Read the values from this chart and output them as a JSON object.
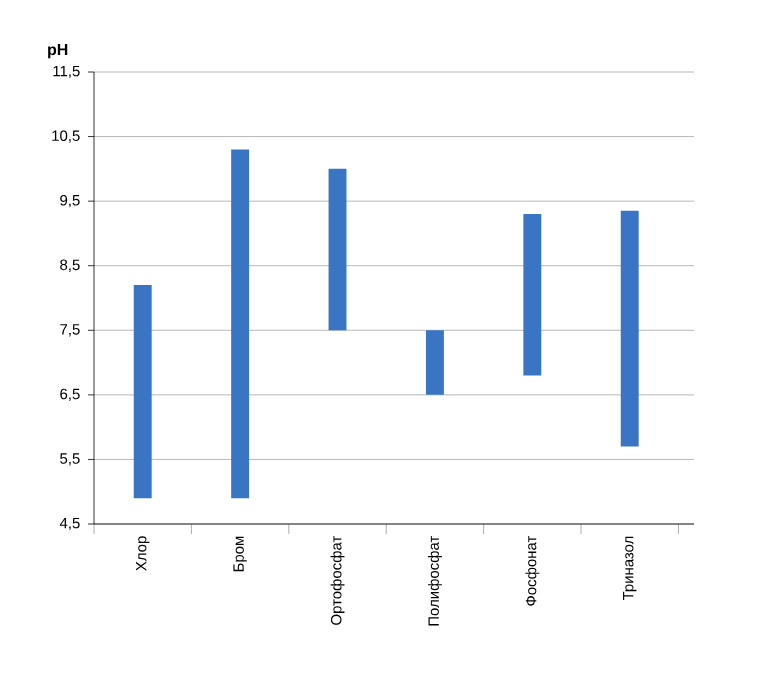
{
  "chart_data": {
    "type": "bar",
    "ylabel": "pH",
    "categories": [
      "Хлор",
      "Бром",
      "Ортофосфат",
      "Полифосфат",
      "Фосфонат",
      "Триназол"
    ],
    "base": [
      4.9,
      4.9,
      7.5,
      6.5,
      6.8,
      5.7
    ],
    "values": [
      3.3,
      5.4,
      2.5,
      1.0,
      2.5,
      3.65
    ],
    "color": "#3a75c4",
    "ylim": [
      4.5,
      11.5
    ],
    "yticks": [
      {
        "value": 4.5,
        "label": "4,5"
      },
      {
        "value": 5.5,
        "label": "5,5"
      },
      {
        "value": 6.5,
        "label": "6,5"
      },
      {
        "value": 7.5,
        "label": "7,5"
      },
      {
        "value": 8.5,
        "label": "8,5"
      },
      {
        "value": 9.5,
        "label": "9,5"
      },
      {
        "value": 10.5,
        "label": "10,5"
      },
      {
        "value": 11.5,
        "label": "11,5"
      }
    ],
    "grid": "y"
  }
}
